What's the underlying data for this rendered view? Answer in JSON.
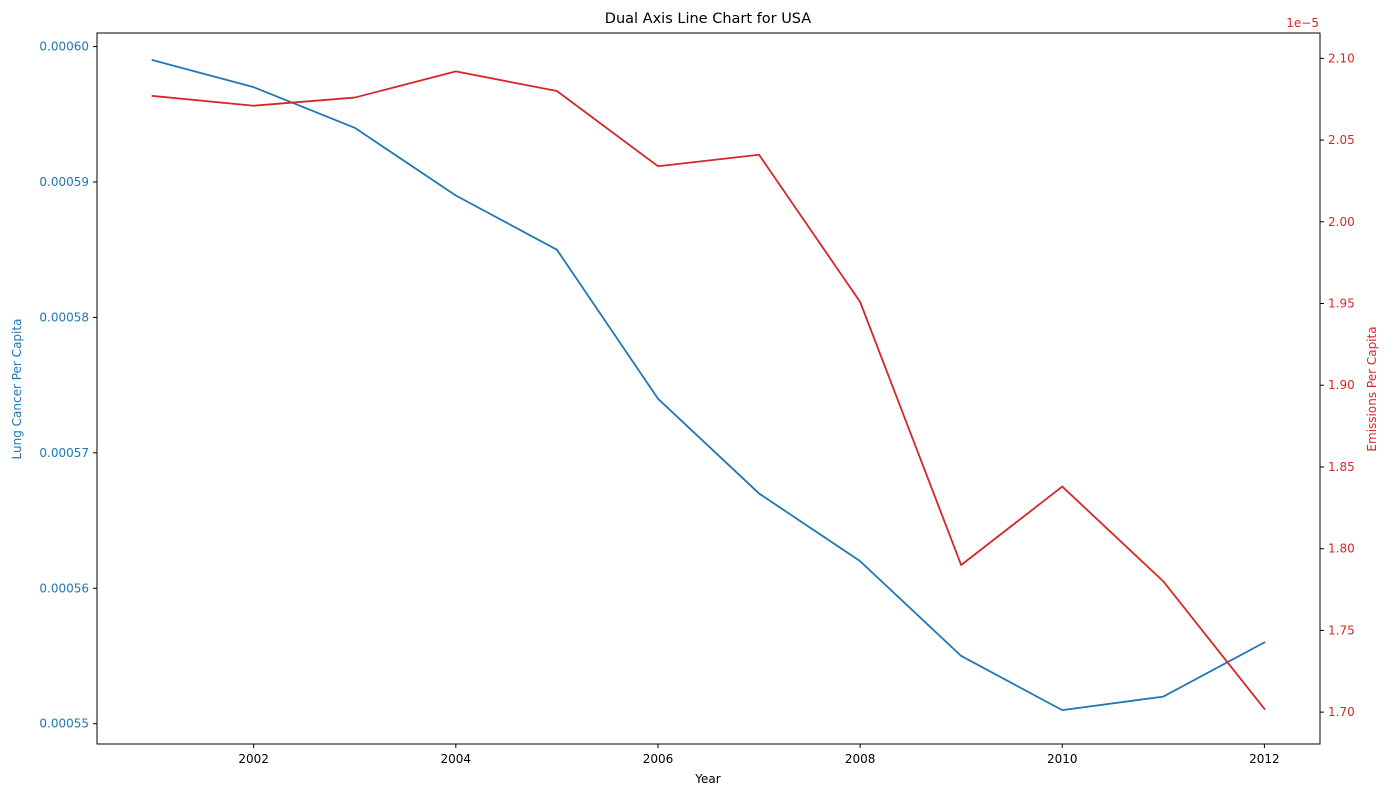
{
  "chart_data": {
    "type": "line",
    "title": "Dual Axis Line Chart for USA",
    "xlabel": "Year",
    "x": [
      2001,
      2002,
      2003,
      2004,
      2005,
      2006,
      2007,
      2008,
      2009,
      2010,
      2011,
      2012
    ],
    "xlim": [
      2000.45,
      2012.55
    ],
    "xticks": [
      2002,
      2004,
      2006,
      2008,
      2010,
      2012
    ],
    "xtick_labels": [
      "2002",
      "2004",
      "2006",
      "2008",
      "2010",
      "2012"
    ],
    "grid": false,
    "legend": "none",
    "left_axis": {
      "label": "Lung Cancer Per Capita",
      "color": "#1f77b4",
      "ylim": [
        0.0005485,
        0.000601
      ],
      "ticks": [
        0.00055,
        0.00056,
        0.00057,
        0.00058,
        0.00059,
        0.0006
      ],
      "tick_labels": [
        "0.00055",
        "0.00056",
        "0.00057",
        "0.00058",
        "0.00059",
        "0.00060"
      ]
    },
    "right_axis": {
      "label": "Emissions Per Capita",
      "color": "#d62728",
      "offset_text": "1e−5",
      "ylim": [
        1.6805,
        2.1155
      ],
      "ticks": [
        1.7,
        1.75,
        1.8,
        1.85,
        1.9,
        1.95,
        2.0,
        2.05,
        2.1
      ],
      "tick_labels": [
        "1.70",
        "1.75",
        "1.80",
        "1.85",
        "1.90",
        "1.95",
        "2.00",
        "2.05",
        "2.10"
      ]
    },
    "series": [
      {
        "axis": "left",
        "color": "#1f77b4",
        "values": [
          0.000599,
          0.000597,
          0.000594,
          0.000589,
          0.000585,
          0.000574,
          0.000567,
          0.000562,
          0.000555,
          0.000551,
          0.000552,
          0.000556
        ]
      },
      {
        "axis": "right",
        "color": "#d62728",
        "values": [
          2.077,
          2.071,
          2.076,
          2.092,
          2.08,
          2.034,
          2.041,
          1.951,
          1.79,
          1.838,
          1.78,
          1.702
        ]
      }
    ]
  }
}
